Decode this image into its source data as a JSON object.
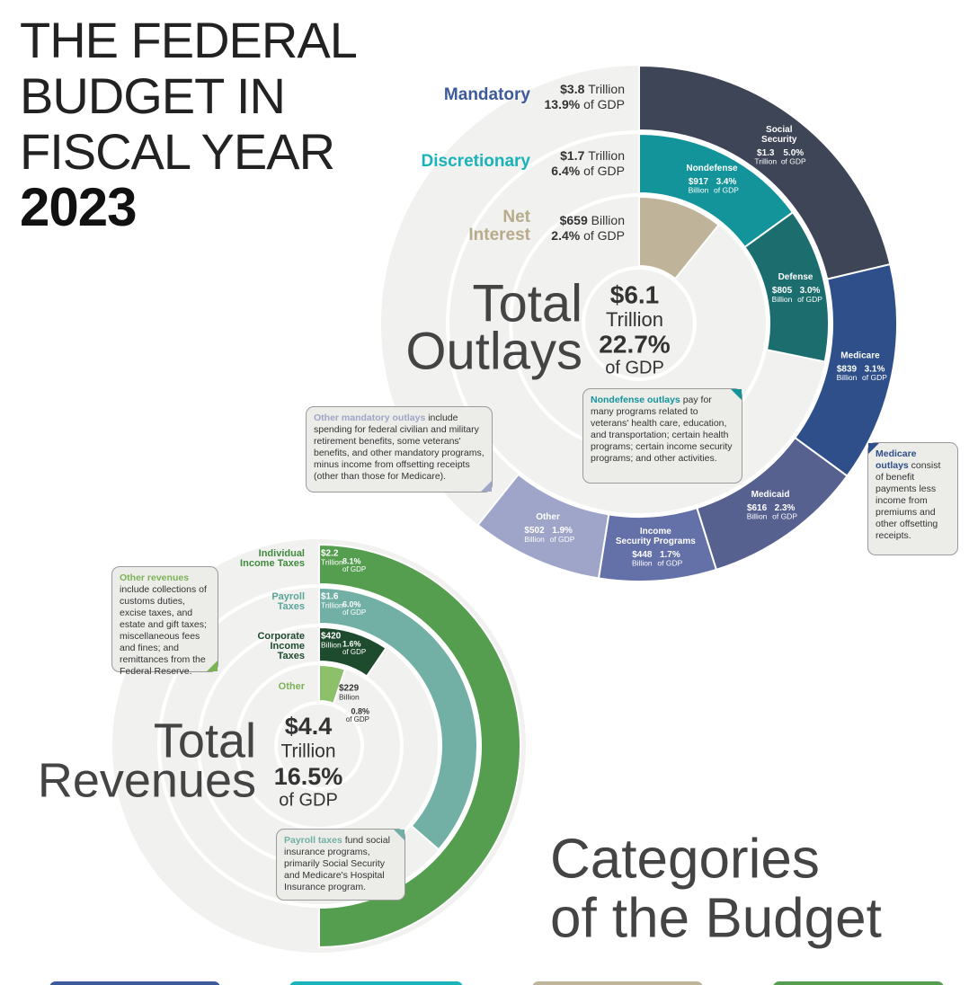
{
  "title": {
    "lines": [
      "THE FEDERAL",
      "BUDGET IN",
      "FISCAL YEAR"
    ],
    "year": "2023"
  },
  "outlays": {
    "heading": [
      "Total",
      "Outlays"
    ],
    "total": {
      "value": 6100,
      "label": "$6.1"
    },
    "unit": "Trillion",
    "gdp": "22.7%",
    "gdp_suffix": "of GDP",
    "groups": [
      {
        "name": [
          "Mandatory"
        ],
        "color": "#3d5a9b",
        "amount": {
          "value": 3800,
          "label": "$3.8"
        },
        "unit": "Trillion",
        "gdp": "13.9%",
        "gdp_suffix": "of GDP",
        "segments": [
          {
            "name": [
              "Social",
              "Security"
            ],
            "color": "#3d4556",
            "amount": {
              "value": 1300,
              "label": "$1.3"
            },
            "unit": "Trillion",
            "gdp": "5.0%",
            "gdp_suffix": "of GDP"
          },
          {
            "name": [
              "Medicare"
            ],
            "color": "#2e4f8a",
            "amount": {
              "value": 839,
              "label": "$839"
            },
            "unit": "Billion",
            "gdp": "3.1%",
            "gdp_suffix": "of GDP"
          },
          {
            "name": [
              "Medicaid"
            ],
            "color": "#56618f",
            "amount": {
              "value": 616,
              "label": "$616"
            },
            "unit": "Billion",
            "gdp": "2.3%",
            "gdp_suffix": "of GDP"
          },
          {
            "name": [
              "Income",
              "Security Programs"
            ],
            "color": "#6470a8",
            "amount": {
              "value": 448,
              "label": "$448"
            },
            "unit": "Billion",
            "gdp": "1.7%",
            "gdp_suffix": "of GDP"
          },
          {
            "name": [
              "Other"
            ],
            "color": "#9ea5c8",
            "amount": {
              "value": 502,
              "label": "$502"
            },
            "unit": "Billion",
            "gdp": "1.9%",
            "gdp_suffix": "of GDP"
          }
        ]
      },
      {
        "name": [
          "Discretionary"
        ],
        "color": "#1ab3ba",
        "amount": {
          "value": 1700,
          "label": "$1.7"
        },
        "unit": "Trillion",
        "gdp": "6.4%",
        "gdp_suffix": "of GDP",
        "segments": [
          {
            "name": [
              "Nondefense"
            ],
            "color": "#13949a",
            "amount": {
              "value": 917,
              "label": "$917"
            },
            "unit": "Billion",
            "gdp": "3.4%",
            "gdp_suffix": "of GDP"
          },
          {
            "name": [
              "Defense"
            ],
            "color": "#1c6e6e",
            "amount": {
              "value": 805,
              "label": "$805"
            },
            "unit": "Billion",
            "gdp": "3.0%",
            "gdp_suffix": "of GDP"
          }
        ]
      },
      {
        "name": [
          "Net",
          "Interest"
        ],
        "color": "#b8ab8a",
        "fill": "#bfb39a",
        "amount": {
          "value": 659,
          "label": "$659"
        },
        "unit": "Billion",
        "gdp": "2.4%",
        "gdp_suffix": "of GDP"
      }
    ]
  },
  "revenues": {
    "heading": [
      "Total",
      "Revenues"
    ],
    "total": {
      "value": 4400,
      "label": "$4.4"
    },
    "unit": "Trillion",
    "gdp": "16.5%",
    "gdp_suffix": "of GDP",
    "categories": [
      {
        "name": [
          "Individual",
          "Income Taxes"
        ],
        "color": "#559e4f",
        "text_color": "#3f8a3c",
        "amount": {
          "value": 2200,
          "label": "$2.2"
        },
        "unit": "Trillion",
        "gdp": "8.1%",
        "gdp_suffix": "of GDP"
      },
      {
        "name": [
          "Payroll",
          "Taxes"
        ],
        "color": "#72b0a6",
        "text_color": "#5aa59a",
        "amount": {
          "value": 1600,
          "label": "$1.6"
        },
        "unit": "Trillion",
        "gdp": "6.0%",
        "gdp_suffix": "of GDP"
      },
      {
        "name": [
          "Corporate",
          "Income",
          "Taxes"
        ],
        "color": "#1e4a2d",
        "text_color": "#1e4a2d",
        "amount": {
          "value": 420,
          "label": "$420"
        },
        "unit": "Billion",
        "gdp": "1.6%",
        "gdp_suffix": "of GDP"
      },
      {
        "name": [
          "Other"
        ],
        "color": "#8dc06a",
        "text_color": "#7ab356",
        "amount": {
          "value": 229,
          "label": "$229"
        },
        "unit": "Billion",
        "gdp": "0.8%",
        "gdp_suffix": "of GDP"
      }
    ]
  },
  "callouts": [
    {
      "lead": "Other mandatory outlays",
      "text": " include spending for federal civilian and military retirement benefits, some veterans' benefits, and other mandatory programs, minus income from offsetting receipts (other than those for Medicare)."
    },
    {
      "lead": "Nondefense outlays",
      "text": " pay for many programs related to veterans' health care, education, and transportation; certain health programs; certain income security programs; and other activities."
    },
    {
      "lead": "Medicare outlays",
      "text": " consist of benefit payments less income from premiums and other offsetting receipts."
    },
    {
      "lead": "Other revenues",
      "text": " include collections of customs duties, excise taxes, and estate and gift taxes; miscellaneous fees and fines; and remittances from the Federal Reserve."
    },
    {
      "lead": "Payroll taxes",
      "text": " fund social insurance programs, primarily Social Security and Medicare's Hospital Insurance program."
    }
  ],
  "footer": {
    "heading": [
      "Categories",
      "of the Budget"
    ]
  }
}
